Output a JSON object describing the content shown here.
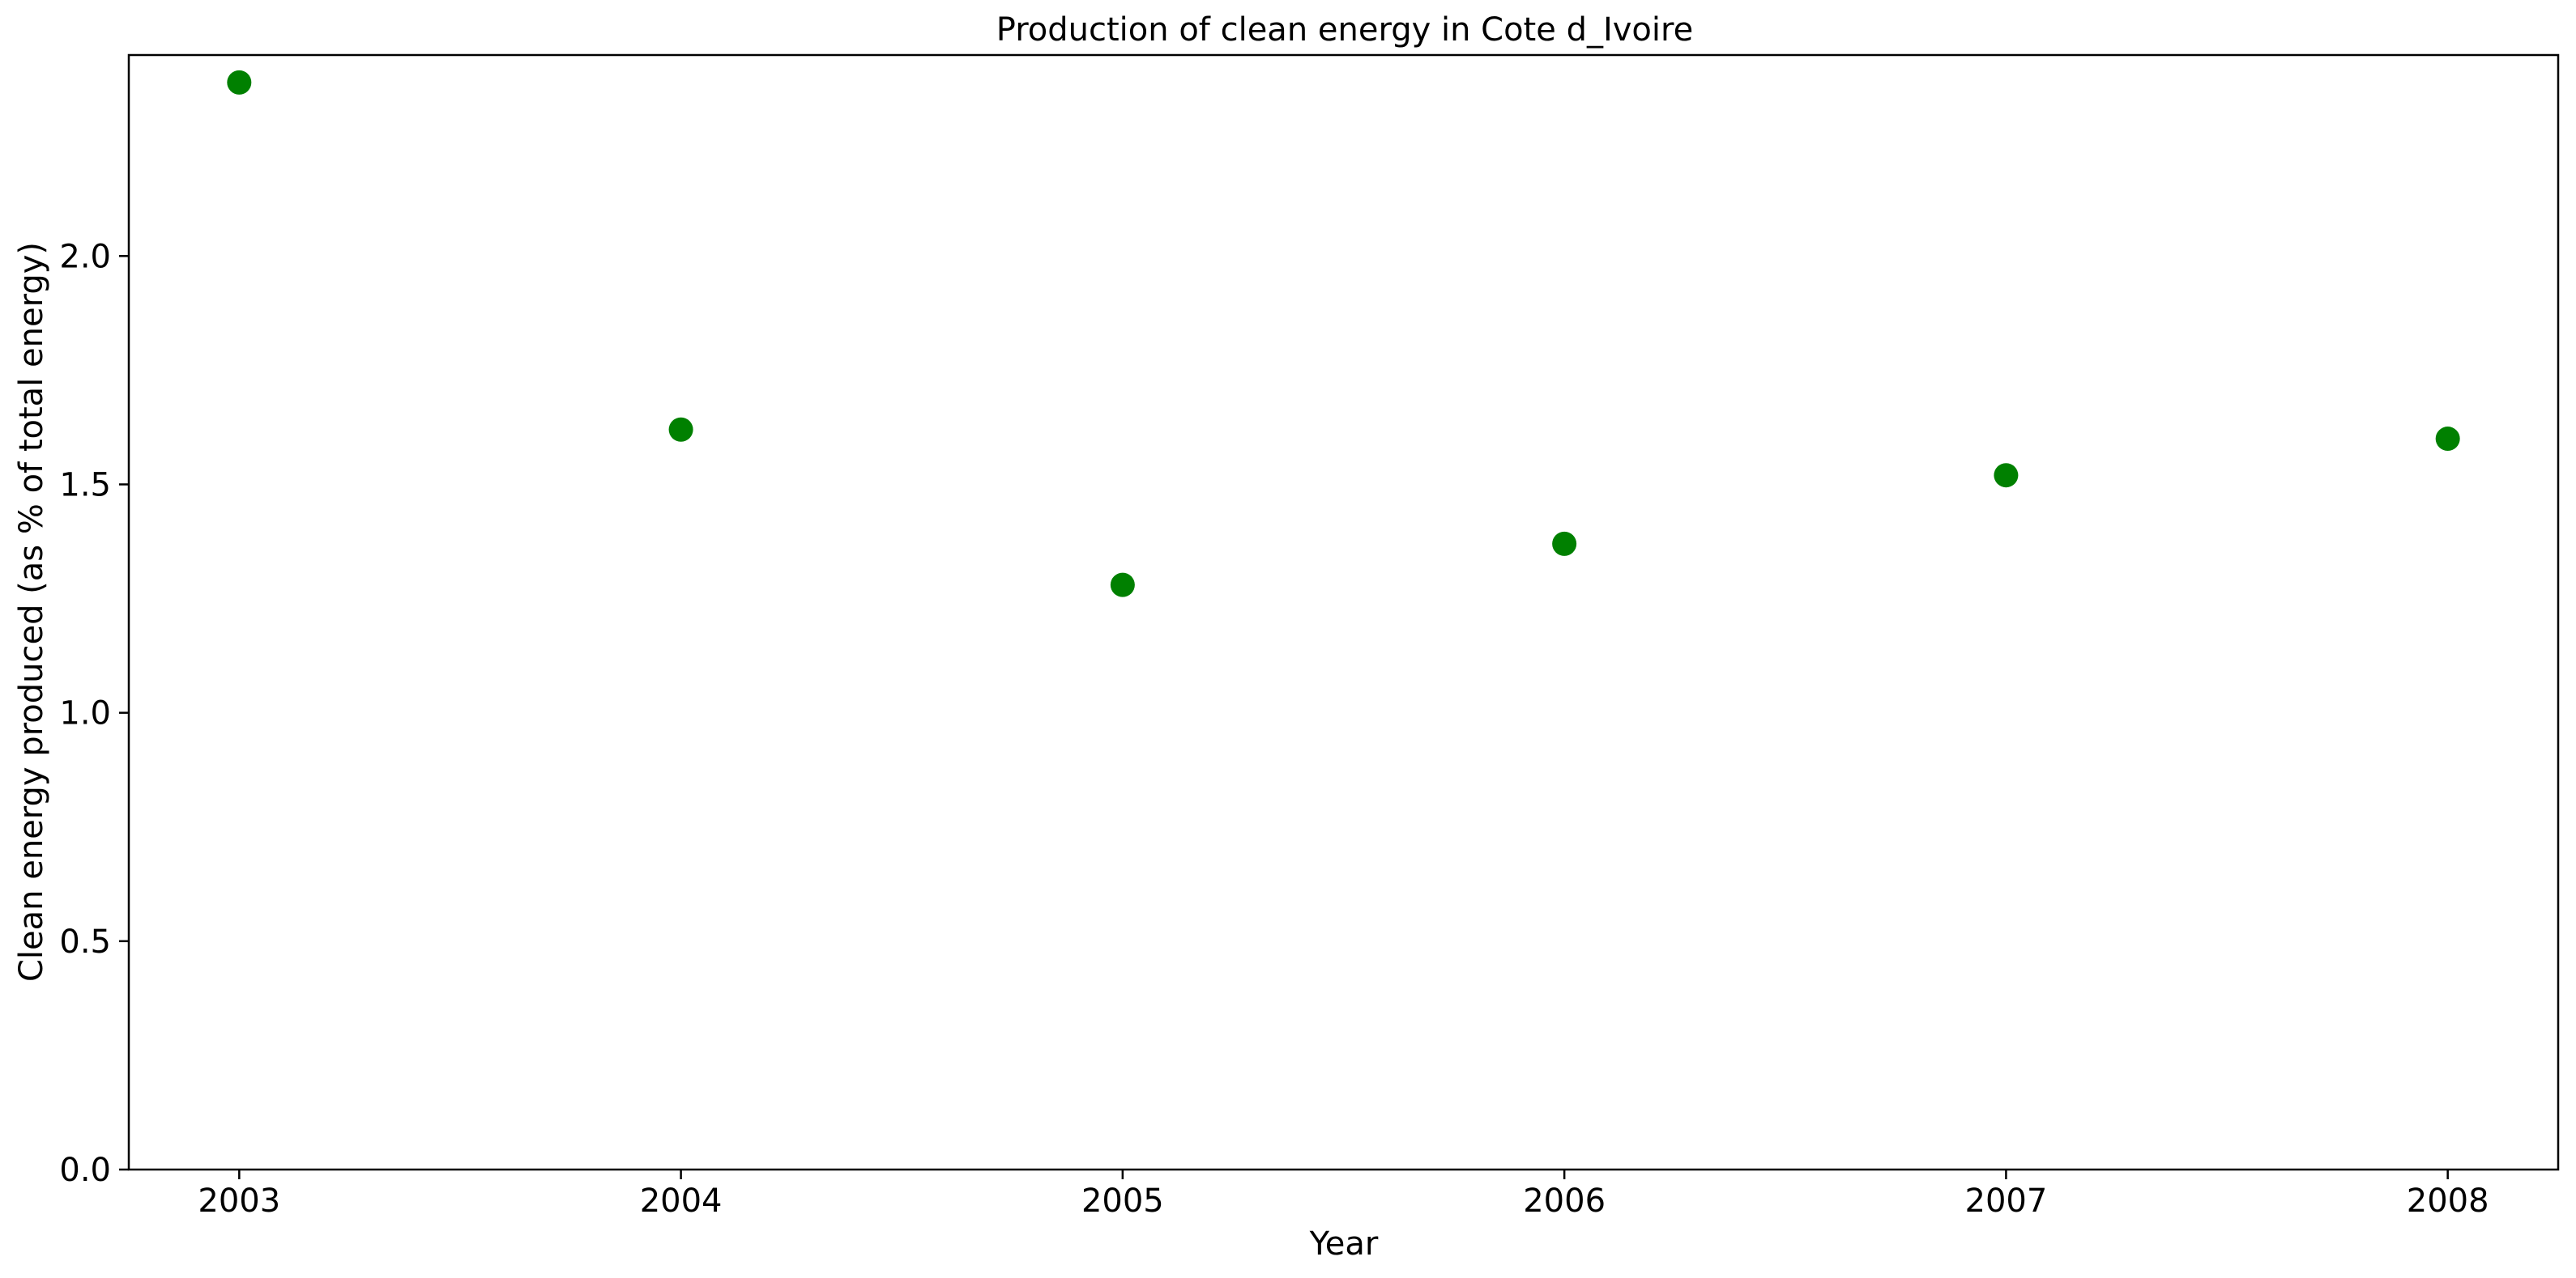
{
  "chart_data": {
    "type": "scatter",
    "title": "Production of clean energy in Cote d_Ivoire",
    "xlabel": "Year",
    "ylabel": "Clean energy produced (as % of total energy)",
    "x": [
      2003,
      2004,
      2005,
      2006,
      2007,
      2008
    ],
    "y": [
      2.38,
      1.62,
      1.28,
      1.37,
      1.52,
      1.6
    ],
    "xticks": [
      "2003",
      "2004",
      "2005",
      "2006",
      "2007",
      "2008"
    ],
    "yticks": [
      "0.0",
      "0.5",
      "1.0",
      "1.5",
      "2.0"
    ],
    "xlim": [
      2002.75,
      2008.25
    ],
    "ylim": [
      0,
      2.44
    ],
    "marker_color": "#008000",
    "grid": false,
    "legend": "none"
  }
}
